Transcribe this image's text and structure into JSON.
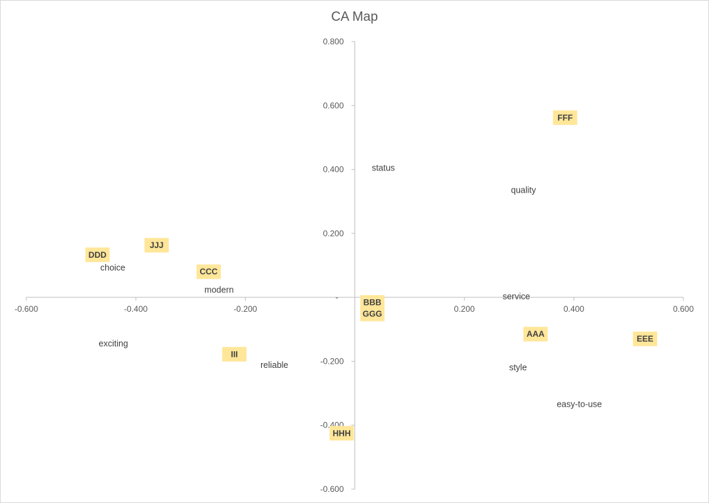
{
  "chart_data": {
    "type": "scatter",
    "title": "CA Map",
    "xlabel": "",
    "ylabel": "",
    "xlim": [
      -0.6,
      0.6
    ],
    "ylim": [
      -0.6,
      0.8
    ],
    "x_ticks": [
      "-0.600",
      "-0.400",
      "-0.200",
      "0.200",
      "0.400",
      "0.600"
    ],
    "y_ticks": [
      "0.800",
      "0.600",
      "0.400",
      "0.200",
      "-0.200",
      "-0.400",
      "-0.600"
    ],
    "origin_tick": "-",
    "grid": false,
    "highlight_color": "#ffe699",
    "series": [
      {
        "points": [
          {
            "label": "status",
            "x": 0.052,
            "y": 0.405
          },
          {
            "label": "quality",
            "x": 0.308,
            "y": 0.335
          },
          {
            "label": "choice",
            "x": -0.442,
            "y": 0.092
          },
          {
            "label": "modern",
            "x": -0.248,
            "y": 0.023
          },
          {
            "label": "service",
            "x": 0.295,
            "y": 0.003
          },
          {
            "label": "exciting",
            "x": -0.441,
            "y": -0.145
          },
          {
            "label": "reliable",
            "x": -0.147,
            "y": -0.212
          },
          {
            "label": "style",
            "x": 0.298,
            "y": -0.22
          },
          {
            "label": "easy-to-use",
            "x": 0.41,
            "y": -0.335
          }
        ]
      },
      {
        "points": [
          {
            "label": "FFF",
            "x": 0.384,
            "y": 0.562
          },
          {
            "label": "JJJ",
            "x": -0.362,
            "y": 0.163
          },
          {
            "label": "DDD",
            "x": -0.47,
            "y": 0.133
          },
          {
            "label": "CCC",
            "x": -0.267,
            "y": 0.08
          },
          {
            "label": "BBB",
            "x": 0.032,
            "y": -0.016
          },
          {
            "label": "GGG",
            "x": 0.032,
            "y": -0.052
          },
          {
            "label": "AAA",
            "x": 0.33,
            "y": -0.115
          },
          {
            "label": "EEE",
            "x": 0.53,
            "y": -0.13
          },
          {
            "label": "III",
            "x": -0.22,
            "y": -0.178
          },
          {
            "label": "HHH",
            "x": -0.024,
            "y": -0.425
          }
        ]
      }
    ]
  }
}
